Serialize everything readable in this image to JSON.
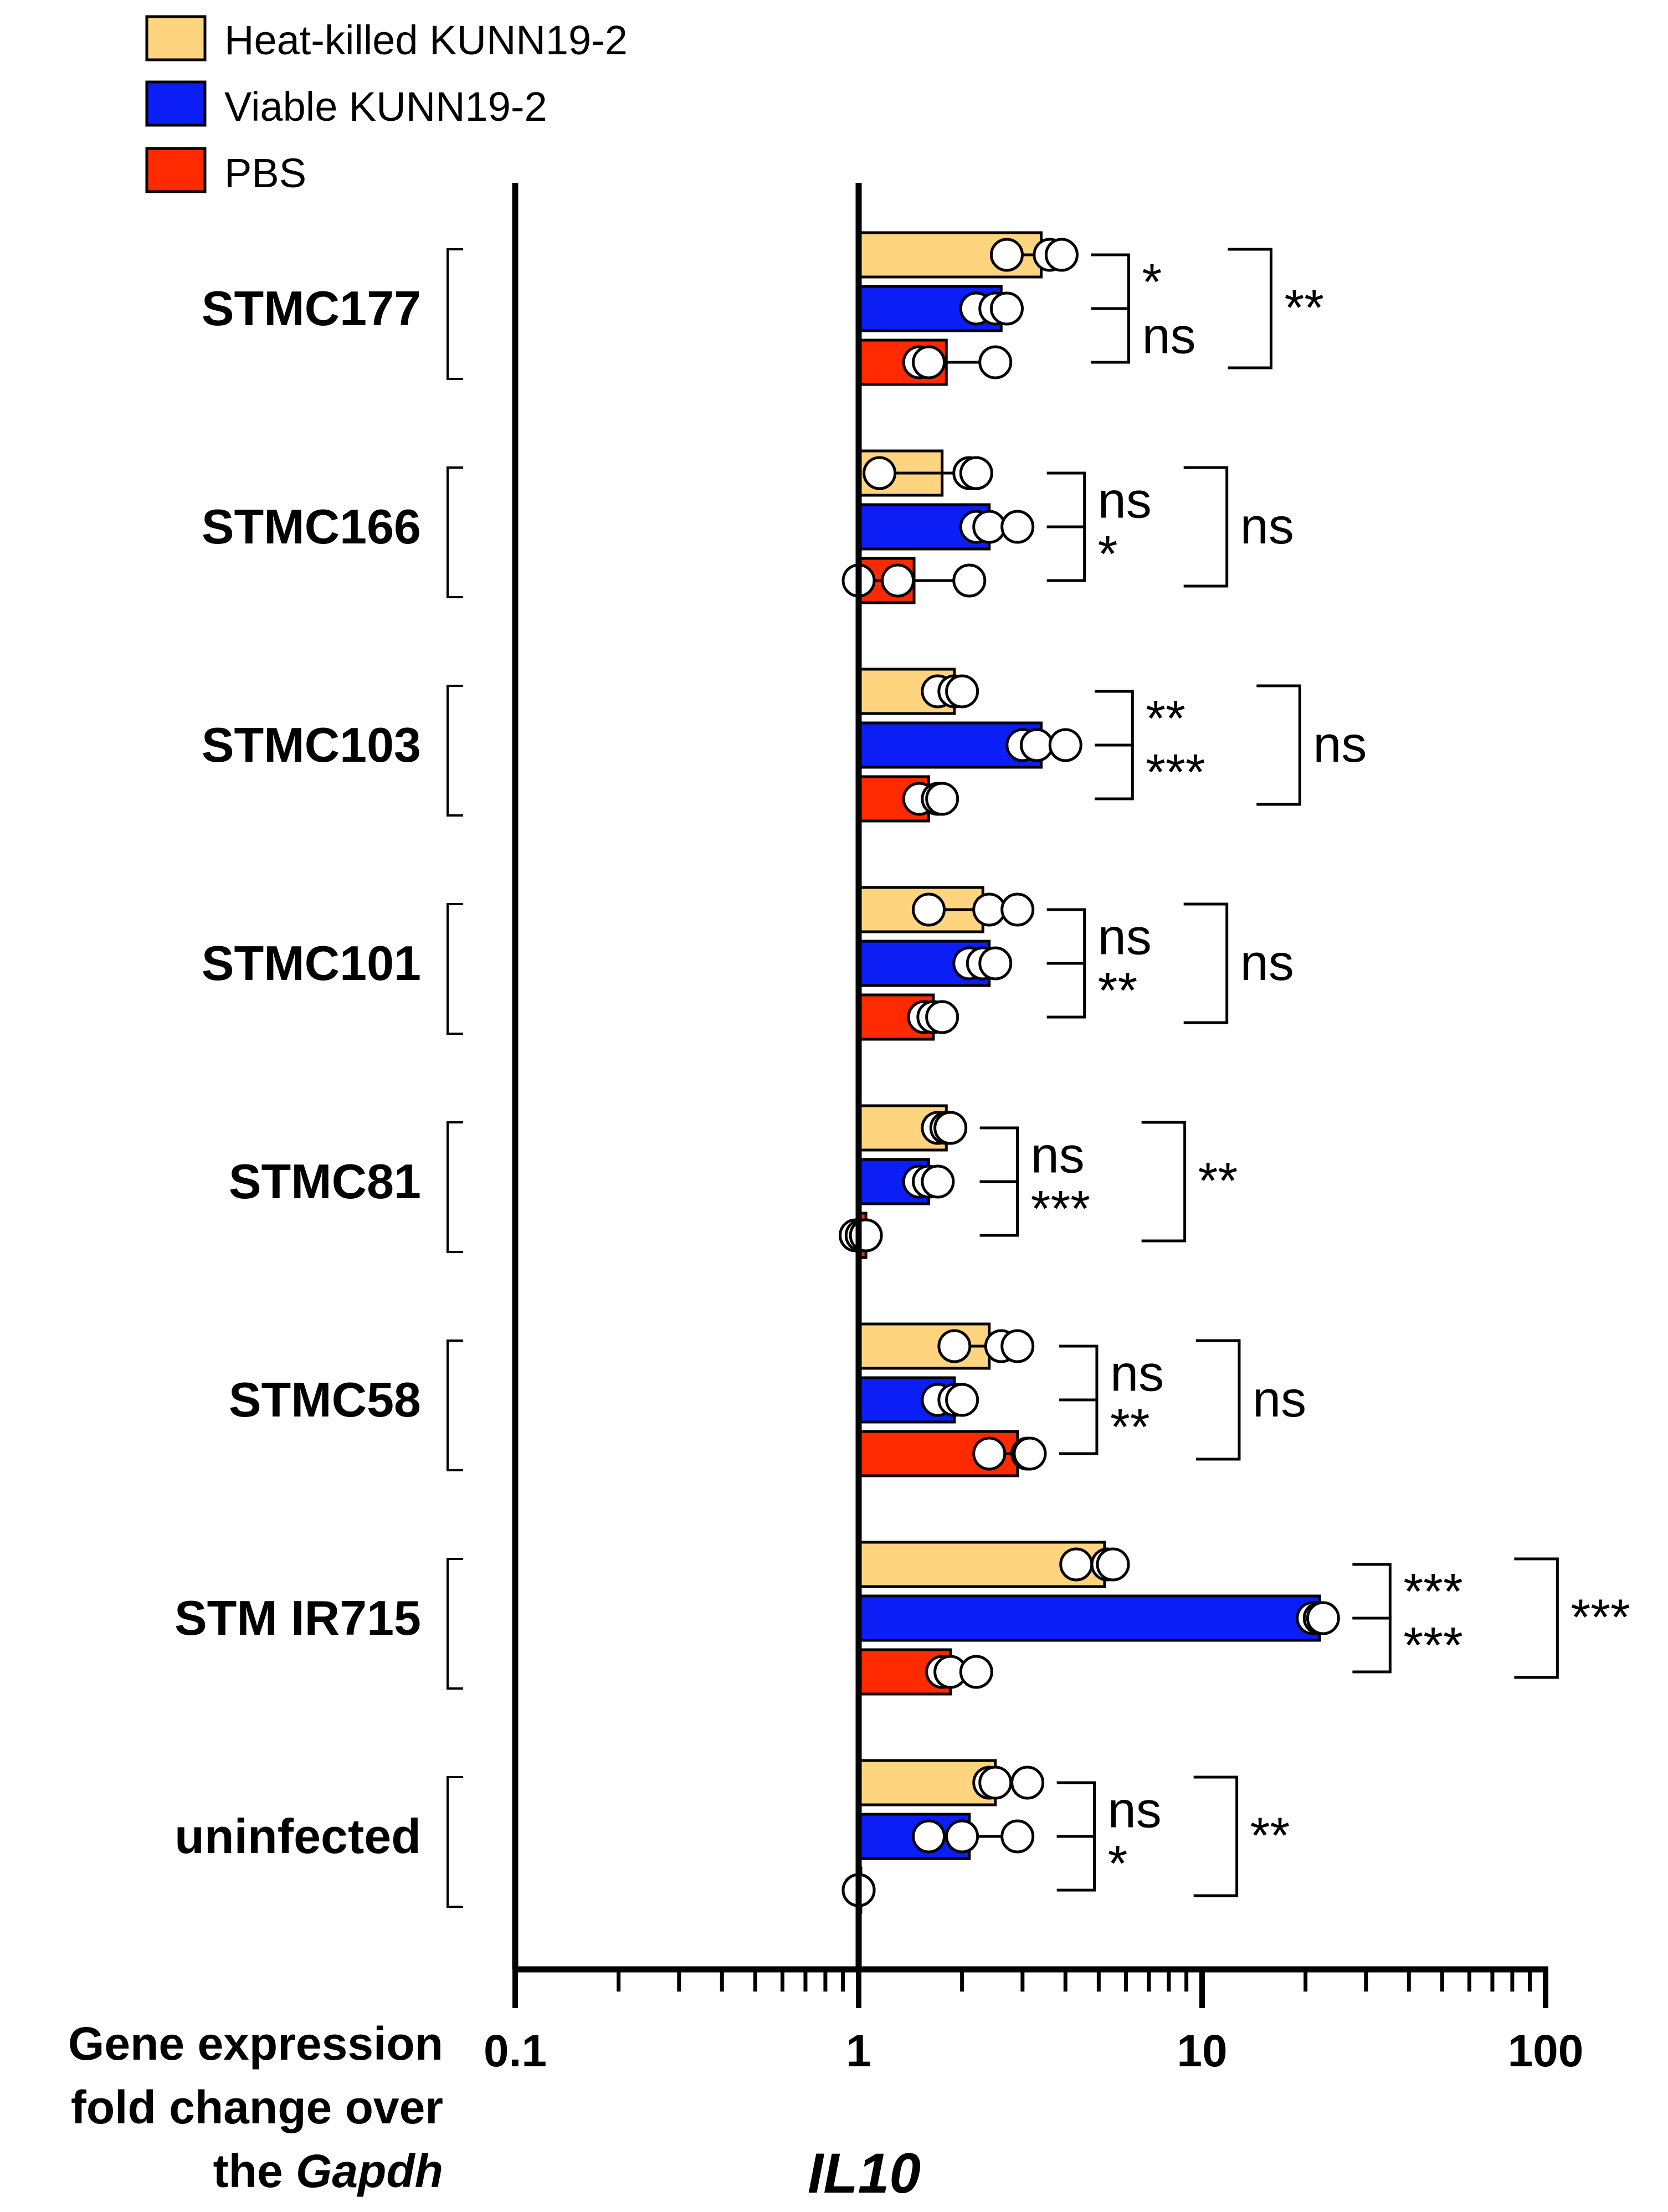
{
  "chart_data": {
    "type": "bar",
    "orientation": "horizontal",
    "x_scale": "log",
    "xlim": [
      0.1,
      100
    ],
    "x_ticks": [
      "0.1",
      "1",
      "10",
      "100"
    ],
    "x_title": "IL10",
    "y_title_parts": [
      "Gene expression",
      "fold change over",
      "the ",
      "Gapdh"
    ],
    "colors": {
      "heat": "#FFD47F",
      "viable": "#0A1EF5",
      "pbs": "#FF2A00"
    },
    "legend": [
      "Heat-killed KUNN19-2",
      "Viable KUNN19-2",
      "PBS"
    ],
    "series_keys": [
      "heat",
      "viable",
      "pbs"
    ],
    "groups": [
      {
        "name": "STMC177",
        "bars": [
          {
            "value": 3.4,
            "points": [
              2.7,
              3.6,
              3.9
            ]
          },
          {
            "value": 2.6,
            "points": [
              2.2,
              2.5,
              2.7
            ]
          },
          {
            "value": 1.8,
            "points": [
              1.5,
              1.6,
              2.5
            ]
          }
        ],
        "sig_adjacent": [
          "*",
          "ns"
        ],
        "sig_outer": "**"
      },
      {
        "name": "STMC166",
        "bars": [
          {
            "value": 1.75,
            "points": [
              1.15,
              2.1,
              2.2
            ]
          },
          {
            "value": 2.4,
            "points": [
              2.2,
              2.4,
              2.9
            ]
          },
          {
            "value": 1.45,
            "points": [
              1.0,
              1.3,
              2.1
            ]
          }
        ],
        "sig_adjacent": [
          "ns",
          "*"
        ],
        "sig_outer": "ns"
      },
      {
        "name": "STMC103",
        "bars": [
          {
            "value": 1.9,
            "points": [
              1.7,
              1.9,
              2.0
            ]
          },
          {
            "value": 3.4,
            "points": [
              3.0,
              3.3,
              4.0
            ]
          },
          {
            "value": 1.6,
            "points": [
              1.5,
              1.7,
              1.75
            ]
          }
        ],
        "sig_adjacent": [
          "**",
          "***"
        ],
        "sig_outer": "ns"
      },
      {
        "name": "STMC101",
        "bars": [
          {
            "value": 2.3,
            "points": [
              1.6,
              2.4,
              2.9
            ]
          },
          {
            "value": 2.4,
            "points": [
              2.1,
              2.3,
              2.5
            ]
          },
          {
            "value": 1.65,
            "points": [
              1.55,
              1.65,
              1.75
            ]
          }
        ],
        "sig_adjacent": [
          "ns",
          "**"
        ],
        "sig_outer": "ns"
      },
      {
        "name": "STMC81",
        "bars": [
          {
            "value": 1.8,
            "points": [
              1.7,
              1.8,
              1.85
            ]
          },
          {
            "value": 1.6,
            "points": [
              1.5,
              1.6,
              1.7
            ]
          },
          {
            "value": 1.05,
            "points": [
              0.98,
              1.02,
              1.05
            ]
          }
        ],
        "sig_adjacent": [
          "ns",
          "***"
        ],
        "sig_outer": "**"
      },
      {
        "name": "STMC58",
        "bars": [
          {
            "value": 2.4,
            "points": [
              1.9,
              2.6,
              2.9
            ]
          },
          {
            "value": 1.9,
            "points": [
              1.7,
              1.9,
              2.0
            ]
          },
          {
            "value": 2.9,
            "points": [
              2.4,
              3.1,
              3.15
            ]
          }
        ],
        "sig_adjacent": [
          "ns",
          "**"
        ],
        "sig_outer": "ns"
      },
      {
        "name": "STM IR715",
        "bars": [
          {
            "value": 5.2,
            "points": [
              4.3,
              5.3,
              5.5
            ]
          },
          {
            "value": 22,
            "points": [
              21,
              22,
              22.5
            ]
          },
          {
            "value": 1.85,
            "points": [
              1.75,
              1.85,
              2.2
            ]
          }
        ],
        "sig_adjacent": [
          "***",
          "***"
        ],
        "sig_outer": "***"
      },
      {
        "name": "uninfected",
        "bars": [
          {
            "value": 2.5,
            "points": [
              2.4,
              2.5,
              3.1
            ]
          },
          {
            "value": 2.1,
            "points": [
              1.6,
              2.0,
              2.9
            ]
          },
          {
            "value": 1.0,
            "points": [
              1.0,
              1.0,
              1.0
            ]
          }
        ],
        "sig_adjacent": [
          "ns",
          "*"
        ],
        "sig_outer": "**"
      }
    ]
  }
}
